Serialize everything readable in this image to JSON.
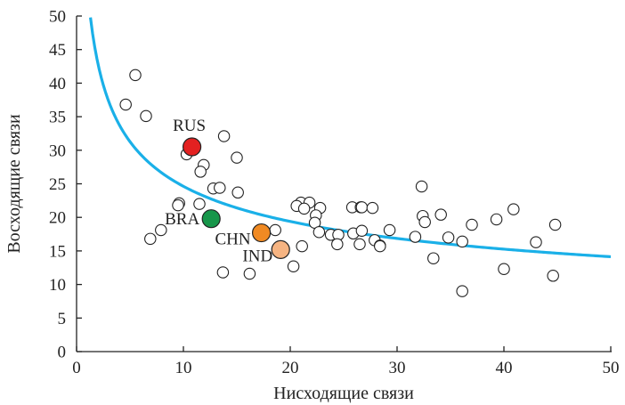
{
  "chart_data": {
    "type": "scatter",
    "title": "",
    "xlabel": "Нисходящие связи",
    "ylabel": "Восходящие связи",
    "xlim": [
      0,
      50
    ],
    "ylim": [
      0,
      50
    ],
    "x_ticks": [
      "0",
      "10",
      "20",
      "30",
      "40",
      "50"
    ],
    "y_ticks": [
      "0",
      "5",
      "10",
      "15",
      "20",
      "25",
      "30",
      "35",
      "40",
      "45",
      "50"
    ],
    "grid": false,
    "colors": {
      "curve": "#1ab0e8",
      "RUS": "#e32121",
      "BRA": "#17964a",
      "CHN": "#f08a23",
      "IND": "#f6b482",
      "others_fill": "#ffffff",
      "stroke": "#222222"
    },
    "highlighted": [
      {
        "label": "RUS",
        "x": 10.8,
        "y": 30.5
      },
      {
        "label": "BRA",
        "x": 12.6,
        "y": 19.8
      },
      {
        "label": "CHN",
        "x": 17.3,
        "y": 17.7
      },
      {
        "label": "IND",
        "x": 19.1,
        "y": 15.2
      }
    ],
    "points": [
      [
        5.5,
        41.2
      ],
      [
        4.6,
        36.8
      ],
      [
        6.5,
        35.1
      ],
      [
        13.8,
        32.1
      ],
      [
        10.3,
        29.4
      ],
      [
        15.0,
        28.9
      ],
      [
        11.9,
        27.8
      ],
      [
        11.6,
        26.8
      ],
      [
        12.8,
        24.3
      ],
      [
        13.4,
        24.4
      ],
      [
        15.1,
        23.7
      ],
      [
        9.6,
        22.1
      ],
      [
        9.5,
        21.8
      ],
      [
        11.5,
        22.0
      ],
      [
        6.9,
        16.8
      ],
      [
        7.9,
        18.1
      ],
      [
        13.7,
        11.8
      ],
      [
        16.2,
        11.6
      ],
      [
        20.3,
        12.7
      ],
      [
        21.0,
        22.2
      ],
      [
        21.8,
        22.2
      ],
      [
        20.6,
        21.7
      ],
      [
        21.3,
        21.3
      ],
      [
        22.8,
        21.4
      ],
      [
        22.4,
        20.3
      ],
      [
        22.3,
        19.2
      ],
      [
        22.7,
        17.8
      ],
      [
        23.8,
        17.4
      ],
      [
        24.5,
        17.4
      ],
      [
        24.4,
        16.0
      ],
      [
        25.9,
        17.6
      ],
      [
        25.8,
        21.5
      ],
      [
        26.6,
        21.5
      ],
      [
        26.7,
        21.5
      ],
      [
        27.7,
        21.4
      ],
      [
        26.7,
        18.0
      ],
      [
        26.5,
        16.0
      ],
      [
        27.9,
        16.6
      ],
      [
        28.4,
        15.8
      ],
      [
        28.4,
        15.7
      ],
      [
        29.3,
        18.1
      ],
      [
        21.1,
        15.7
      ],
      [
        18.6,
        18.1
      ],
      [
        31.7,
        17.1
      ],
      [
        32.3,
        24.6
      ],
      [
        32.4,
        20.2
      ],
      [
        32.6,
        19.3
      ],
      [
        34.1,
        20.4
      ],
      [
        33.4,
        13.9
      ],
      [
        34.8,
        17.0
      ],
      [
        36.1,
        16.4
      ],
      [
        36.1,
        9.0
      ],
      [
        37.0,
        18.9
      ],
      [
        39.3,
        19.7
      ],
      [
        40.0,
        12.3
      ],
      [
        40.9,
        21.2
      ],
      [
        43.0,
        16.3
      ],
      [
        44.6,
        11.3
      ],
      [
        44.8,
        18.9
      ]
    ],
    "curve": {
      "a": 54.5,
      "b": -0.345,
      "x_start": 1.3,
      "x_end": 50
    }
  }
}
